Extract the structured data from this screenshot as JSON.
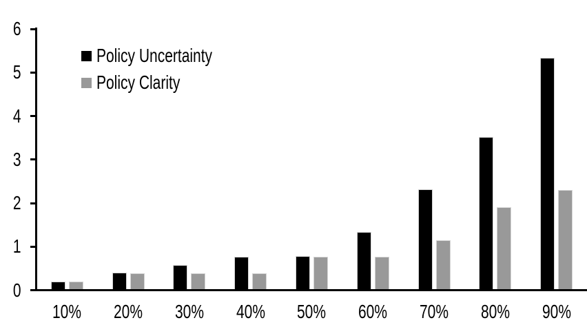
{
  "chart_data": {
    "type": "bar",
    "title": "",
    "xlabel": "",
    "ylabel": "",
    "categories": [
      "10%",
      "20%",
      "30%",
      "40%",
      "50%",
      "60%",
      "70%",
      "80%",
      "90%"
    ],
    "series": [
      {
        "name": "Policy Uncertainty",
        "color": "#000000",
        "values": [
          0.2,
          0.4,
          0.57,
          0.76,
          0.78,
          1.33,
          2.31,
          3.51,
          5.33
        ]
      },
      {
        "name": "Policy Clarity",
        "color": "#999999",
        "values": [
          0.19,
          0.38,
          0.38,
          0.38,
          0.77,
          0.77,
          1.14,
          1.91,
          2.3
        ]
      }
    ],
    "ylim": [
      0,
      6
    ],
    "yticks": [
      0,
      1,
      2,
      3,
      4,
      5,
      6
    ],
    "grid": false,
    "legend_position": "top-left-inside",
    "axis_color": "#000000",
    "background_color": "#ffffff",
    "bar_edge_color": "#d4d4d4"
  }
}
